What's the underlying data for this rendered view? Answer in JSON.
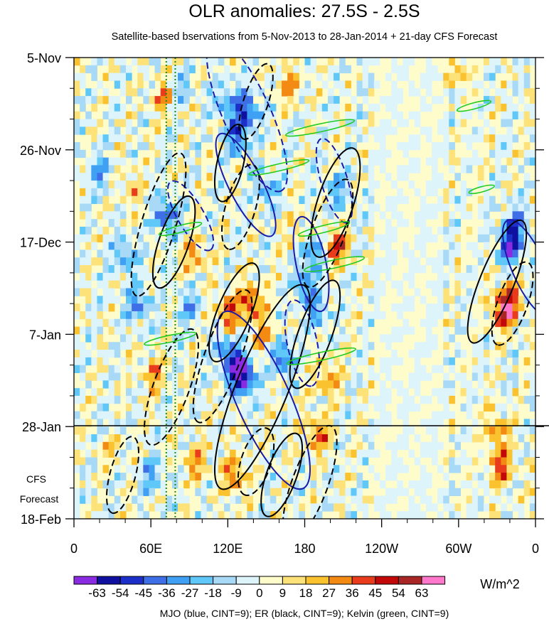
{
  "chart_data": {
    "type": "heatmap",
    "title": "OLR anomalies: 27.5S - 2.5S",
    "subtitle": "Satellite-based bservations from 5-Nov-2013 to 28-Jan-2014 + 21-day CFS Forecast",
    "x_axis": {
      "quantity": "longitude",
      "range_deg_east": [
        0,
        360
      ],
      "tick_values_deg_east": [
        0,
        60,
        120,
        180,
        240,
        300,
        360
      ],
      "tick_labels": [
        "0",
        "60E",
        "120E",
        "180",
        "120W",
        "60W",
        "0"
      ]
    },
    "y_axis": {
      "quantity": "date",
      "direction": "downward",
      "range_days_from_start": [
        0,
        105
      ],
      "tick_days_from_start": [
        0,
        21,
        42,
        63,
        84,
        105
      ],
      "tick_labels": [
        "5-Nov",
        "26-Nov",
        "17-Dec",
        "7-Jan",
        "28-Jan",
        "18-Feb"
      ]
    },
    "forecast_divider_day": 84,
    "forecast_label_line1": "CFS",
    "forecast_label_line2": "Forecast",
    "reference_meridians_deg_east": [
      72,
      79
    ],
    "colorbar": {
      "units": "W/m^2",
      "tick_labels": [
        "-63",
        "-54",
        "-45",
        "-36",
        "-27",
        "-18",
        "-9",
        "0",
        "9",
        "18",
        "27",
        "36",
        "45",
        "54",
        "63"
      ],
      "colors": [
        "#8a2be2",
        "#0f0fa0",
        "#1c2fc8",
        "#3f6fe6",
        "#3fa0f4",
        "#5fc8f8",
        "#a8daf8",
        "#ddf4fa",
        "#fffccc",
        "#fde27a",
        "#fbc230",
        "#f28a14",
        "#e83c1c",
        "#c20808",
        "#a82626",
        "#ff78cc"
      ]
    },
    "contours": [
      {
        "type": "MJO",
        "color": "#1a1aa8",
        "sign": "neg",
        "lon": 135,
        "day": 13,
        "a": 19,
        "b": 5.4,
        "ang": 66
      },
      {
        "type": "MJO",
        "color": "#1a1aa8",
        "sign": "pos",
        "lon": 134,
        "day": 29,
        "a": 13,
        "b": 3.8,
        "ang": 63
      },
      {
        "type": "MJO",
        "color": "#1a1aa8",
        "sign": "neg",
        "lon": 91,
        "day": 36,
        "a": 9,
        "b": 3,
        "ang": 60
      },
      {
        "type": "MJO",
        "color": "#1a1aa8",
        "sign": "pos",
        "lon": 185,
        "day": 47,
        "a": 11,
        "b": 3.4,
        "ang": 78
      },
      {
        "type": "MJO",
        "color": "#1a1aa8",
        "sign": "neg",
        "lon": 178,
        "day": 65,
        "a": 10,
        "b": 3.4,
        "ang": 78
      },
      {
        "type": "MJO",
        "color": "#1a1aa8",
        "sign": "pos",
        "lon": 148,
        "day": 78,
        "a": 22,
        "b": 6.1,
        "ang": 66
      },
      {
        "type": "MJO",
        "color": "#1a1aa8",
        "sign": "neg",
        "lon": 203,
        "day": 28,
        "a": 10,
        "b": 3,
        "ang": 73
      },
      {
        "type": "MJO",
        "color": "#1a1aa8",
        "sign": "pos",
        "lon": 355,
        "day": 48,
        "a": 12,
        "b": 3.8,
        "ang": 66
      },
      {
        "type": "ER",
        "color": "#000000",
        "sign": "neg",
        "lon": 66,
        "day": 38,
        "a": 17,
        "b": 3.9,
        "ang": 107
      },
      {
        "type": "ER",
        "color": "#000000",
        "sign": "pos",
        "lon": 78,
        "day": 42,
        "a": 11,
        "b": 3.4,
        "ang": 109
      },
      {
        "type": "ER",
        "color": "#000000",
        "sign": "pos",
        "lon": 122,
        "day": 24,
        "a": 9,
        "b": 3,
        "ang": 103
      },
      {
        "type": "ER",
        "color": "#000000",
        "sign": "neg",
        "lon": 130,
        "day": 34,
        "a": 10,
        "b": 3.4,
        "ang": 106
      },
      {
        "type": "ER",
        "color": "#000000",
        "sign": "neg",
        "lon": 198,
        "day": 40,
        "a": 13,
        "b": 3.8,
        "ang": 110
      },
      {
        "type": "ER",
        "color": "#000000",
        "sign": "pos",
        "lon": 204,
        "day": 33,
        "a": 13,
        "b": 4.1,
        "ang": 108
      },
      {
        "type": "ER",
        "color": "#000000",
        "sign": "neg",
        "lon": 142,
        "day": 10,
        "a": 9,
        "b": 2.8,
        "ang": 108
      },
      {
        "type": "ER",
        "color": "#000000",
        "sign": "pos",
        "lon": 125,
        "day": 58,
        "a": 12,
        "b": 3.8,
        "ang": 112
      },
      {
        "type": "ER",
        "color": "#000000",
        "sign": "neg",
        "lon": 116,
        "day": 68,
        "a": 16,
        "b": 4.1,
        "ang": 110
      },
      {
        "type": "ER",
        "color": "#000000",
        "sign": "pos",
        "lon": 147,
        "day": 75,
        "a": 25,
        "b": 5.9,
        "ang": 112
      },
      {
        "type": "ER",
        "color": "#000000",
        "sign": "pos",
        "lon": 188,
        "day": 63,
        "a": 13,
        "b": 3.8,
        "ang": 110
      },
      {
        "type": "ER",
        "color": "#000000",
        "sign": "neg",
        "lon": 76,
        "day": 75,
        "a": 14,
        "b": 4.1,
        "ang": 110
      },
      {
        "type": "ER",
        "color": "#000000",
        "sign": "neg",
        "lon": 142,
        "day": 92,
        "a": 8,
        "b": 3.4,
        "ang": 108
      },
      {
        "type": "ER",
        "color": "#000000",
        "sign": "pos",
        "lon": 162,
        "day": 95,
        "a": 10,
        "b": 3.4,
        "ang": 110
      },
      {
        "type": "ER",
        "color": "#000000",
        "sign": "neg",
        "lon": 184,
        "day": 97,
        "a": 14,
        "b": 4.1,
        "ang": 110
      },
      {
        "type": "ER",
        "color": "#000000",
        "sign": "pos",
        "lon": 330,
        "day": 51,
        "a": 15,
        "b": 3.9,
        "ang": 112
      },
      {
        "type": "ER",
        "color": "#000000",
        "sign": "neg",
        "lon": 342,
        "day": 56,
        "a": 10,
        "b": 3.4,
        "ang": 110
      },
      {
        "type": "ER",
        "color": "#000000",
        "sign": "neg",
        "lon": 38,
        "day": 95,
        "a": 9,
        "b": 2.9,
        "ang": 105
      },
      {
        "type": "Kelvin",
        "color": "#22cc22",
        "sign": "pos",
        "lon": 203,
        "day": 47,
        "a": 7,
        "b": 0.9,
        "ang": 168
      },
      {
        "type": "Kelvin",
        "color": "#22cc22",
        "sign": "pos",
        "lon": 192,
        "day": 16,
        "a": 8,
        "b": 0.9,
        "ang": 168
      },
      {
        "type": "Kelvin",
        "color": "#22cc22",
        "sign": "pos",
        "lon": 195,
        "day": 39,
        "a": 6,
        "b": 0.8,
        "ang": 166
      },
      {
        "type": "Kelvin",
        "color": "#22cc22",
        "sign": "pos",
        "lon": 193,
        "day": 68,
        "a": 8,
        "b": 0.9,
        "ang": 168
      },
      {
        "type": "Kelvin",
        "color": "#22cc22",
        "sign": "pos",
        "lon": 83,
        "day": 39,
        "a": 5,
        "b": 0.8,
        "ang": 165
      },
      {
        "type": "Kelvin",
        "color": "#22cc22",
        "sign": "pos",
        "lon": 75,
        "day": 64,
        "a": 6,
        "b": 0.8,
        "ang": 168
      },
      {
        "type": "Kelvin",
        "color": "#22cc22",
        "sign": "pos",
        "lon": 312,
        "day": 11,
        "a": 4,
        "b": 0.7,
        "ang": 165
      },
      {
        "type": "Kelvin",
        "color": "#22cc22",
        "sign": "pos",
        "lon": 160,
        "day": 25,
        "a": 7,
        "b": 0.8,
        "ang": 167
      },
      {
        "type": "Kelvin",
        "color": "#22cc22",
        "sign": "pos",
        "lon": 318,
        "day": 30,
        "a": 3,
        "b": 0.6,
        "ang": 165
      }
    ],
    "anomaly_cells": [
      {
        "lon": 135,
        "day": 12,
        "v": -50
      },
      {
        "lon": 128,
        "day": 18,
        "v": -40
      },
      {
        "lon": 118,
        "day": 10,
        "v": -30
      },
      {
        "lon": 132,
        "day": 73,
        "v": -62
      },
      {
        "lon": 126,
        "day": 70,
        "v": -45
      },
      {
        "lon": 130,
        "day": 62,
        "v": -36
      },
      {
        "lon": 118,
        "day": 66,
        "v": -30
      },
      {
        "lon": 72,
        "day": 36,
        "v": -45
      },
      {
        "lon": 50,
        "day": 56,
        "v": -36
      },
      {
        "lon": 40,
        "day": 45,
        "v": -30
      },
      {
        "lon": 20,
        "day": 26,
        "v": -30
      },
      {
        "lon": 185,
        "day": 44,
        "v": -40
      },
      {
        "lon": 180,
        "day": 52,
        "v": -36
      },
      {
        "lon": 162,
        "day": 68,
        "v": -45
      },
      {
        "lon": 190,
        "day": 58,
        "v": -27
      },
      {
        "lon": 340,
        "day": 43,
        "v": -54
      },
      {
        "lon": 345,
        "day": 38,
        "v": -36
      },
      {
        "lon": 90,
        "day": 57,
        "v": -27
      },
      {
        "lon": 150,
        "day": 30,
        "v": -27
      },
      {
        "lon": 82,
        "day": 7,
        "v": -20
      },
      {
        "lon": 205,
        "day": 30,
        "v": -27
      },
      {
        "lon": 60,
        "day": 95,
        "v": -27
      },
      {
        "lon": 30,
        "day": 85,
        "v": -20
      },
      {
        "lon": 138,
        "day": 56,
        "v": 45
      },
      {
        "lon": 128,
        "day": 62,
        "v": 40
      },
      {
        "lon": 120,
        "day": 58,
        "v": 36
      },
      {
        "lon": 150,
        "day": 64,
        "v": 30
      },
      {
        "lon": 335,
        "day": 58,
        "v": 45
      },
      {
        "lon": 340,
        "day": 55,
        "v": 36
      },
      {
        "lon": 333,
        "day": 93,
        "v": 40
      },
      {
        "lon": 330,
        "day": 85,
        "v": 30
      },
      {
        "lon": 205,
        "day": 43,
        "v": 45
      },
      {
        "lon": 190,
        "day": 86,
        "v": 36
      },
      {
        "lon": 198,
        "day": 73,
        "v": 30
      },
      {
        "lon": 125,
        "day": 95,
        "v": 36
      },
      {
        "lon": 70,
        "day": 9,
        "v": 30
      },
      {
        "lon": 30,
        "day": 88,
        "v": 27
      },
      {
        "lon": 62,
        "day": 72,
        "v": 27
      },
      {
        "lon": 95,
        "day": 92,
        "v": 27
      },
      {
        "lon": 300,
        "day": 3,
        "v": 20
      },
      {
        "lon": 95,
        "day": 45,
        "v": 27
      },
      {
        "lon": 45,
        "day": 30,
        "v": 20
      },
      {
        "lon": 168,
        "day": 6,
        "v": 27
      },
      {
        "lon": 175,
        "day": 40,
        "v": 20
      }
    ],
    "footnote": "MJO (blue, CINT=9); ER (black, CINT=9); Kelvin (green, CINT=9)"
  }
}
